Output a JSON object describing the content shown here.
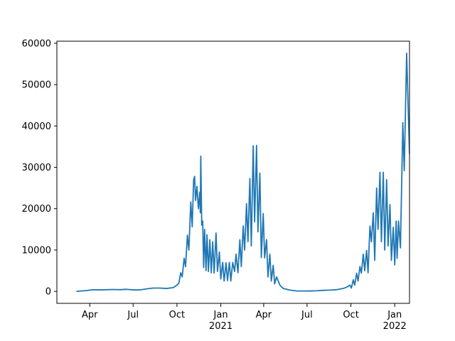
{
  "chart_data": {
    "type": "line",
    "x": [
      "2020-03-04",
      "2020-03-25",
      "2020-04-08",
      "2020-04-22",
      "2020-05-06",
      "2020-05-20",
      "2020-06-03",
      "2020-06-17",
      "2020-07-01",
      "2020-07-15",
      "2020-07-29",
      "2020-08-12",
      "2020-08-26",
      "2020-09-09",
      "2020-09-23",
      "2020-10-01",
      "2020-10-05",
      "2020-10-09",
      "2020-10-12",
      "2020-10-16",
      "2020-10-19",
      "2020-10-23",
      "2020-10-26",
      "2020-10-30",
      "2020-11-02",
      "2020-11-05",
      "2020-11-07",
      "2020-11-09",
      "2020-11-12",
      "2020-11-15",
      "2020-11-18",
      "2020-11-19",
      "2020-11-20",
      "2020-11-22",
      "2020-11-24",
      "2020-11-26",
      "2020-11-28",
      "2020-12-01",
      "2020-12-03",
      "2020-12-06",
      "2020-12-09",
      "2020-12-12",
      "2020-12-15",
      "2020-12-18",
      "2020-12-22",
      "2020-12-25",
      "2020-12-29",
      "2021-01-01",
      "2021-01-05",
      "2021-01-08",
      "2021-01-12",
      "2021-01-15",
      "2021-01-19",
      "2021-01-22",
      "2021-01-26",
      "2021-01-30",
      "2021-02-02",
      "2021-02-06",
      "2021-02-10",
      "2021-02-13",
      "2021-02-17",
      "2021-02-20",
      "2021-02-24",
      "2021-02-27",
      "2021-03-03",
      "2021-03-06",
      "2021-03-10",
      "2021-03-13",
      "2021-03-17",
      "2021-03-20",
      "2021-03-24",
      "2021-03-27",
      "2021-03-31",
      "2021-04-03",
      "2021-04-07",
      "2021-04-10",
      "2021-04-14",
      "2021-04-17",
      "2021-04-21",
      "2021-04-24",
      "2021-04-28",
      "2021-05-05",
      "2021-05-12",
      "2021-05-26",
      "2021-06-09",
      "2021-06-23",
      "2021-07-07",
      "2021-07-21",
      "2021-08-04",
      "2021-08-18",
      "2021-09-01",
      "2021-09-15",
      "2021-09-22",
      "2021-09-29",
      "2021-10-02",
      "2021-10-06",
      "2021-10-09",
      "2021-10-13",
      "2021-10-16",
      "2021-10-20",
      "2021-10-23",
      "2021-10-27",
      "2021-10-30",
      "2021-11-03",
      "2021-11-06",
      "2021-11-10",
      "2021-11-13",
      "2021-11-17",
      "2021-11-20",
      "2021-11-24",
      "2021-11-27",
      "2021-12-01",
      "2021-12-04",
      "2021-12-08",
      "2021-12-11",
      "2021-12-15",
      "2021-12-18",
      "2021-12-22",
      "2021-12-25",
      "2021-12-29",
      "2022-01-01",
      "2022-01-04",
      "2022-01-06",
      "2022-01-09",
      "2022-01-13",
      "2022-01-18",
      "2022-01-21",
      "2022-01-26",
      "2022-02-01"
    ],
    "values": [
      0,
      200,
      400,
      350,
      400,
      450,
      400,
      500,
      350,
      350,
      600,
      800,
      800,
      700,
      900,
      1500,
      2000,
      4500,
      3500,
      8000,
      6000,
      13600,
      10000,
      21600,
      15600,
      27000,
      27800,
      22000,
      25400,
      20000,
      24000,
      19000,
      32700,
      16000,
      17000,
      5800,
      15000,
      5000,
      13700,
      4800,
      12500,
      4500,
      12000,
      4400,
      14100,
      4800,
      9500,
      3000,
      7000,
      2500,
      6900,
      2600,
      7000,
      2500,
      7000,
      4800,
      9000,
      4500,
      12500,
      6000,
      15800,
      10000,
      21200,
      12000,
      27300,
      11000,
      35200,
      16800,
      35300,
      14400,
      28600,
      8200,
      18800,
      8100,
      12500,
      3500,
      9000,
      2500,
      6300,
      1800,
      3500,
      1500,
      700,
      300,
      100,
      80,
      100,
      150,
      250,
      300,
      400,
      700,
      1000,
      1500,
      800,
      2800,
      1500,
      4400,
      2500,
      6000,
      4400,
      9000,
      5000,
      9900,
      4500,
      15800,
      12000,
      19000,
      7500,
      25000,
      15000,
      28800,
      12000,
      28800,
      10000,
      27000,
      11000,
      21000,
      7500,
      15500,
      6400,
      17000,
      8000,
      17000,
      10500,
      40800,
      29200,
      57600,
      33200
    ],
    "color": "#1f77b4",
    "xlim": [
      "2020-01-23",
      "2022-02-01"
    ],
    "xticks": [
      {
        "value": "2020-04-01",
        "label": "Apr"
      },
      {
        "value": "2020-07-01",
        "label": "Jul"
      },
      {
        "value": "2020-10-01",
        "label": "Oct"
      },
      {
        "value": "2021-01-01",
        "label": "Jan\n2021"
      },
      {
        "value": "2021-04-01",
        "label": "Apr"
      },
      {
        "value": "2021-07-01",
        "label": "Jul"
      },
      {
        "value": "2021-10-01",
        "label": "Oct"
      },
      {
        "value": "2022-01-01",
        "label": "Jan\n2022"
      }
    ],
    "ylim": [
      -2900,
      60500
    ],
    "yticks": [
      0,
      10000,
      20000,
      30000,
      40000,
      50000,
      60000
    ]
  }
}
